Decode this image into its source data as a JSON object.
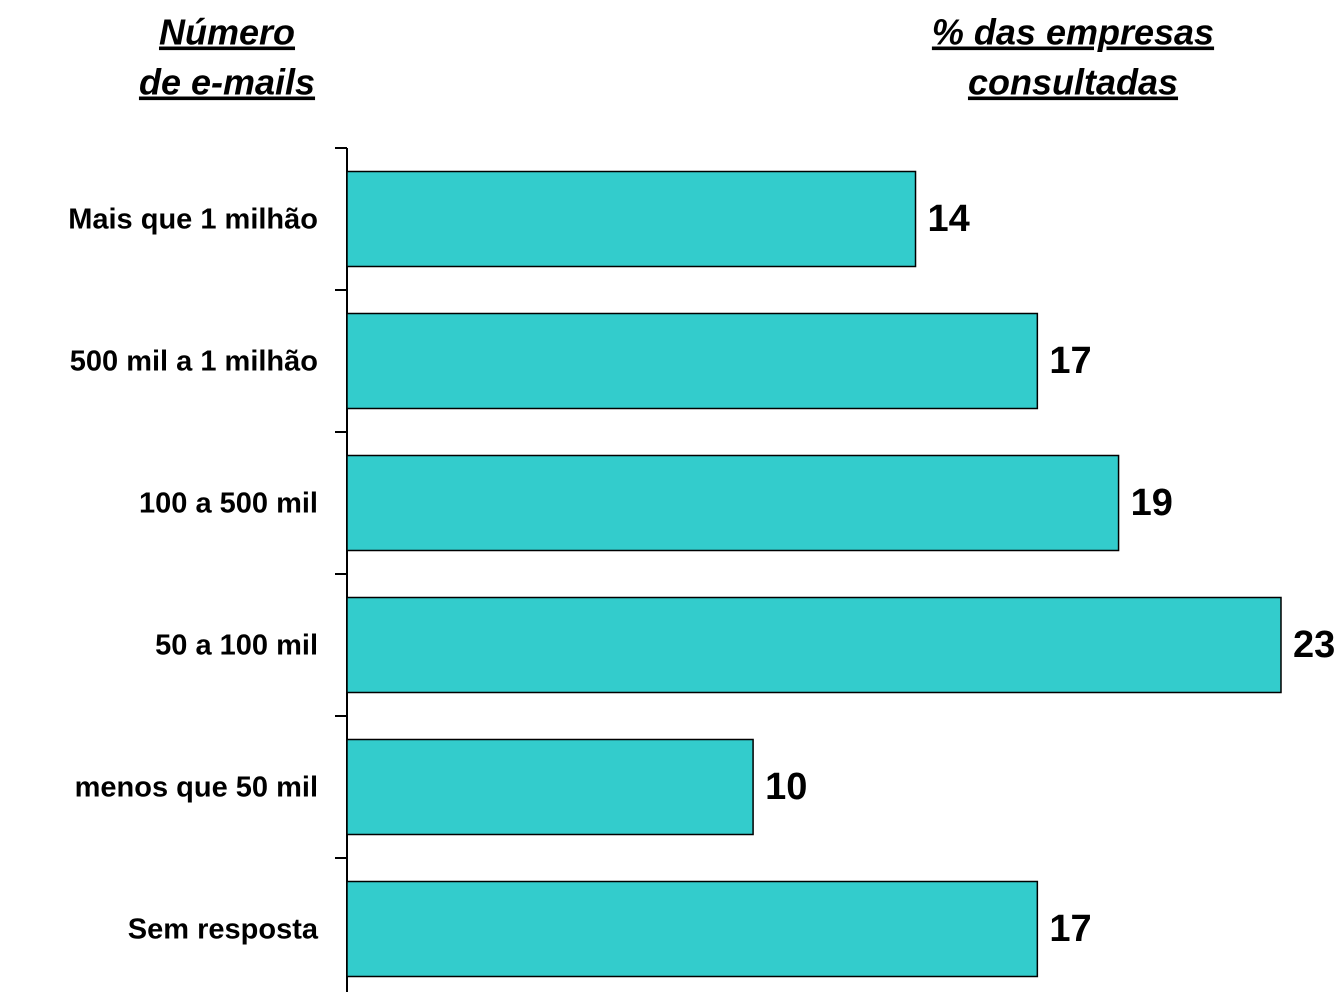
{
  "chart_data": {
    "type": "bar",
    "orientation": "horizontal",
    "y_axis_label": [
      "Número",
      "de e-mails"
    ],
    "x_axis_label": [
      "% das empresas",
      "consultadas"
    ],
    "categories": [
      "Mais que 1 milhão",
      "500 mil a 1 milhão",
      "100 a 500 mil",
      "50 a 100 mil",
      "menos que 50 mil",
      "Sem resposta"
    ],
    "values": [
      14,
      17,
      19,
      23,
      10,
      17
    ],
    "color": "#33cccc"
  }
}
